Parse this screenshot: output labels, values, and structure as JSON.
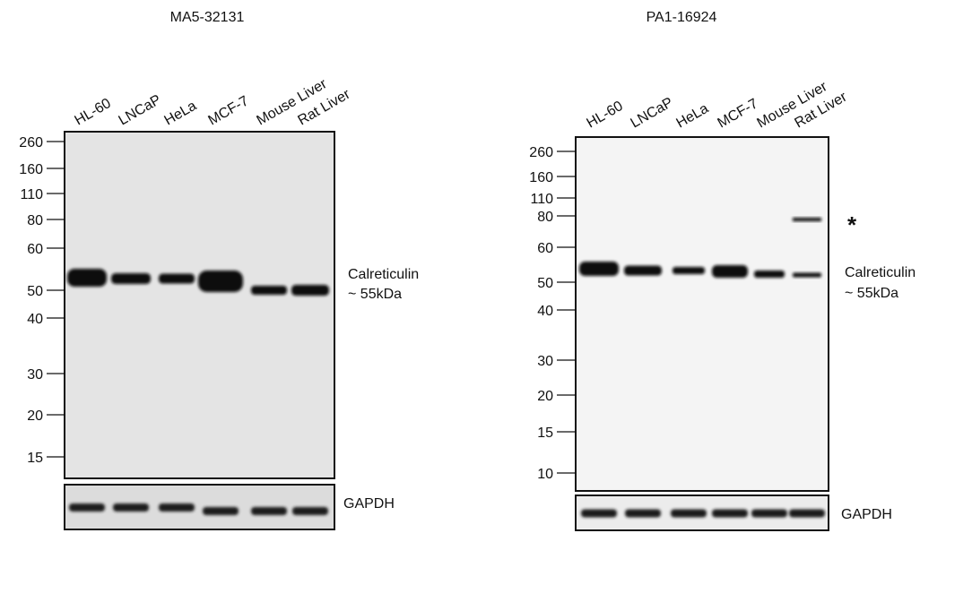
{
  "panels": [
    {
      "title": "MA5-32131",
      "lanes": [
        "HL-60",
        "LNCaP",
        "HeLa",
        "MCF-7",
        "Mouse Liver",
        "Rat Liver"
      ],
      "markers": [
        260,
        160,
        110,
        80,
        60,
        50,
        40,
        30,
        20,
        15
      ],
      "band_label": [
        "Calreticulin",
        "~ 55kDa"
      ],
      "loading_control": "GAPDH"
    },
    {
      "title": "PA1-16924",
      "lanes": [
        "HL-60",
        "LNCaP",
        "HeLa",
        "MCF-7",
        "Mouse Liver",
        "Rat Liver"
      ],
      "markers": [
        260,
        160,
        110,
        80,
        60,
        50,
        40,
        30,
        20,
        15,
        10
      ],
      "band_label": [
        "Calreticulin",
        "~ 55kDa"
      ],
      "loading_control": "GAPDH",
      "annotation": "*"
    }
  ]
}
